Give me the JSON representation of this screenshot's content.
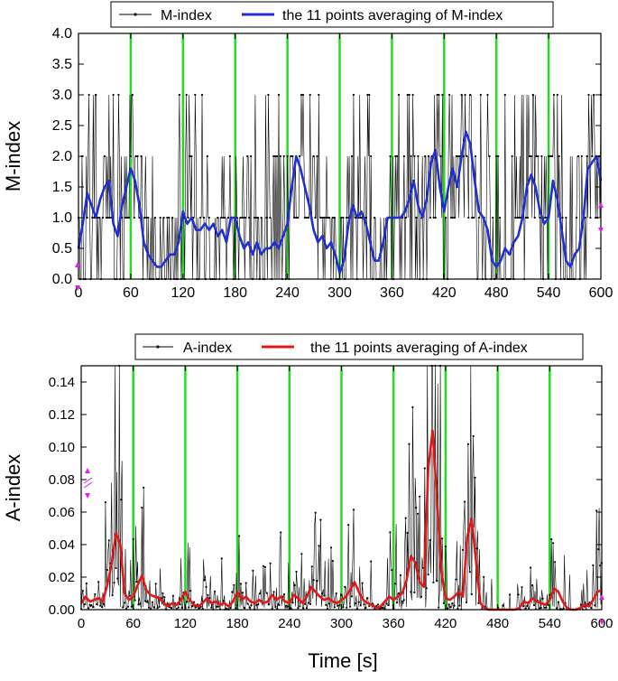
{
  "chart_data": [
    {
      "type": "line",
      "id": "m",
      "ylabel": "M-index",
      "xlim": [
        0,
        600
      ],
      "ylim": [
        0,
        4
      ],
      "xticks": [
        0,
        60,
        120,
        180,
        240,
        300,
        360,
        420,
        480,
        540,
        600
      ],
      "xtick_labels": [
        "0",
        "60",
        "120",
        "180",
        "240",
        "300",
        "360",
        "420",
        "480",
        "540",
        "600"
      ],
      "yticks": [
        0,
        0.5,
        1.0,
        1.5,
        2.0,
        2.5,
        3.0,
        3.5,
        4.0
      ],
      "ytick_labels": [
        "0.0",
        "0.5",
        "1.0",
        "1.5",
        "2.0",
        "2.5",
        "3.0",
        "3.5",
        "4.0"
      ],
      "vlines": [
        60,
        120,
        180,
        240,
        300,
        360,
        420,
        480,
        540
      ],
      "legend": [
        {
          "label": "M-index",
          "color": "#000000"
        },
        {
          "label": "the 11 points averaging of M-index",
          "color": "#1f2fd0"
        }
      ],
      "raw_series_color": "#000000",
      "avg_series_color": "#1f2fd0",
      "avg_series": [
        {
          "x": 0,
          "y": 0.5
        },
        {
          "x": 5,
          "y": 0.9
        },
        {
          "x": 10,
          "y": 1.4
        },
        {
          "x": 15,
          "y": 1.2
        },
        {
          "x": 20,
          "y": 1.0
        },
        {
          "x": 25,
          "y": 1.3
        },
        {
          "x": 30,
          "y": 1.5
        },
        {
          "x": 35,
          "y": 1.6
        },
        {
          "x": 40,
          "y": 0.9
        },
        {
          "x": 45,
          "y": 0.7
        },
        {
          "x": 50,
          "y": 1.2
        },
        {
          "x": 55,
          "y": 1.5
        },
        {
          "x": 60,
          "y": 1.8
        },
        {
          "x": 65,
          "y": 1.6
        },
        {
          "x": 70,
          "y": 1.2
        },
        {
          "x": 75,
          "y": 0.6
        },
        {
          "x": 80,
          "y": 0.4
        },
        {
          "x": 85,
          "y": 0.3
        },
        {
          "x": 90,
          "y": 0.2
        },
        {
          "x": 95,
          "y": 0.2
        },
        {
          "x": 100,
          "y": 0.3
        },
        {
          "x": 105,
          "y": 0.4
        },
        {
          "x": 110,
          "y": 0.4
        },
        {
          "x": 115,
          "y": 0.6
        },
        {
          "x": 120,
          "y": 1.1
        },
        {
          "x": 125,
          "y": 0.9
        },
        {
          "x": 130,
          "y": 1.0
        },
        {
          "x": 135,
          "y": 0.8
        },
        {
          "x": 140,
          "y": 0.8
        },
        {
          "x": 145,
          "y": 0.9
        },
        {
          "x": 150,
          "y": 0.8
        },
        {
          "x": 155,
          "y": 0.9
        },
        {
          "x": 160,
          "y": 0.7
        },
        {
          "x": 165,
          "y": 0.8
        },
        {
          "x": 170,
          "y": 0.6
        },
        {
          "x": 175,
          "y": 1.0
        },
        {
          "x": 180,
          "y": 1.0
        },
        {
          "x": 185,
          "y": 0.7
        },
        {
          "x": 190,
          "y": 0.5
        },
        {
          "x": 195,
          "y": 0.6
        },
        {
          "x": 200,
          "y": 0.4
        },
        {
          "x": 205,
          "y": 0.6
        },
        {
          "x": 210,
          "y": 0.4
        },
        {
          "x": 215,
          "y": 0.5
        },
        {
          "x": 220,
          "y": 0.5
        },
        {
          "x": 225,
          "y": 0.6
        },
        {
          "x": 230,
          "y": 0.5
        },
        {
          "x": 235,
          "y": 0.7
        },
        {
          "x": 240,
          "y": 0.9
        },
        {
          "x": 245,
          "y": 1.5
        },
        {
          "x": 250,
          "y": 2.0
        },
        {
          "x": 255,
          "y": 1.8
        },
        {
          "x": 260,
          "y": 1.5
        },
        {
          "x": 265,
          "y": 1.2
        },
        {
          "x": 270,
          "y": 0.8
        },
        {
          "x": 275,
          "y": 0.6
        },
        {
          "x": 280,
          "y": 0.7
        },
        {
          "x": 285,
          "y": 0.5
        },
        {
          "x": 290,
          "y": 0.6
        },
        {
          "x": 295,
          "y": 0.4
        },
        {
          "x": 300,
          "y": 0.1
        },
        {
          "x": 305,
          "y": 0.3
        },
        {
          "x": 310,
          "y": 0.9
        },
        {
          "x": 315,
          "y": 1.2
        },
        {
          "x": 320,
          "y": 1.0
        },
        {
          "x": 325,
          "y": 1.1
        },
        {
          "x": 330,
          "y": 0.9
        },
        {
          "x": 335,
          "y": 0.6
        },
        {
          "x": 340,
          "y": 0.3
        },
        {
          "x": 345,
          "y": 0.3
        },
        {
          "x": 350,
          "y": 0.6
        },
        {
          "x": 355,
          "y": 1.0
        },
        {
          "x": 360,
          "y": 1.0
        },
        {
          "x": 365,
          "y": 1.0
        },
        {
          "x": 370,
          "y": 1.0
        },
        {
          "x": 375,
          "y": 1.1
        },
        {
          "x": 380,
          "y": 1.3
        },
        {
          "x": 385,
          "y": 1.6
        },
        {
          "x": 390,
          "y": 1.2
        },
        {
          "x": 395,
          "y": 1.0
        },
        {
          "x": 400,
          "y": 1.3
        },
        {
          "x": 405,
          "y": 1.9
        },
        {
          "x": 410,
          "y": 2.1
        },
        {
          "x": 415,
          "y": 1.5
        },
        {
          "x": 420,
          "y": 1.1
        },
        {
          "x": 425,
          "y": 1.5
        },
        {
          "x": 430,
          "y": 1.8
        },
        {
          "x": 435,
          "y": 1.5
        },
        {
          "x": 440,
          "y": 2.0
        },
        {
          "x": 445,
          "y": 2.4
        },
        {
          "x": 450,
          "y": 2.2
        },
        {
          "x": 455,
          "y": 1.6
        },
        {
          "x": 460,
          "y": 1.1
        },
        {
          "x": 465,
          "y": 1.0
        },
        {
          "x": 470,
          "y": 0.8
        },
        {
          "x": 475,
          "y": 0.3
        },
        {
          "x": 480,
          "y": 0.2
        },
        {
          "x": 485,
          "y": 0.3
        },
        {
          "x": 490,
          "y": 0.5
        },
        {
          "x": 495,
          "y": 0.4
        },
        {
          "x": 500,
          "y": 0.6
        },
        {
          "x": 505,
          "y": 0.7
        },
        {
          "x": 510,
          "y": 1.0
        },
        {
          "x": 515,
          "y": 1.5
        },
        {
          "x": 520,
          "y": 1.7
        },
        {
          "x": 525,
          "y": 1.5
        },
        {
          "x": 530,
          "y": 1.1
        },
        {
          "x": 535,
          "y": 0.9
        },
        {
          "x": 540,
          "y": 1.0
        },
        {
          "x": 545,
          "y": 1.6
        },
        {
          "x": 550,
          "y": 1.3
        },
        {
          "x": 555,
          "y": 0.8
        },
        {
          "x": 560,
          "y": 0.3
        },
        {
          "x": 565,
          "y": 0.2
        },
        {
          "x": 570,
          "y": 0.4
        },
        {
          "x": 575,
          "y": 0.5
        },
        {
          "x": 580,
          "y": 1.0
        },
        {
          "x": 585,
          "y": 1.8
        },
        {
          "x": 590,
          "y": 1.9
        },
        {
          "x": 595,
          "y": 2.0
        },
        {
          "x": 600,
          "y": 1.6
        }
      ]
    },
    {
      "type": "line",
      "id": "a",
      "ylabel": "A-index",
      "xlabel": "Time [s]",
      "xlim": [
        0,
        600
      ],
      "ylim": [
        0,
        0.15
      ],
      "xticks": [
        0,
        60,
        120,
        180,
        240,
        300,
        360,
        420,
        480,
        540,
        600
      ],
      "xtick_labels": [
        "0",
        "60",
        "120",
        "180",
        "240",
        "300",
        "360",
        "420",
        "480",
        "540",
        "600"
      ],
      "yticks": [
        0,
        0.02,
        0.04,
        0.06,
        0.08,
        0.1,
        0.12,
        0.14
      ],
      "ytick_labels": [
        "0.00",
        "0.02",
        "0.04",
        "0.06",
        "0.08",
        "0.10",
        "0.12",
        "0.14"
      ],
      "vlines": [
        60,
        120,
        180,
        240,
        300,
        360,
        420,
        480,
        540
      ],
      "legend": [
        {
          "label": "A-index",
          "color": "#000000"
        },
        {
          "label": "the 11 points averaging of A-index",
          "color": "#e01818"
        }
      ],
      "raw_series_color": "#000000",
      "avg_series_color": "#e01818",
      "avg_series": [
        {
          "x": 0,
          "y": 0.004
        },
        {
          "x": 5,
          "y": 0.008
        },
        {
          "x": 10,
          "y": 0.005
        },
        {
          "x": 15,
          "y": 0.006
        },
        {
          "x": 20,
          "y": 0.007
        },
        {
          "x": 25,
          "y": 0.005
        },
        {
          "x": 30,
          "y": 0.015
        },
        {
          "x": 35,
          "y": 0.028
        },
        {
          "x": 40,
          "y": 0.047
        },
        {
          "x": 45,
          "y": 0.04
        },
        {
          "x": 50,
          "y": 0.01
        },
        {
          "x": 55,
          "y": 0.006
        },
        {
          "x": 60,
          "y": 0.008
        },
        {
          "x": 65,
          "y": 0.015
        },
        {
          "x": 70,
          "y": 0.021
        },
        {
          "x": 75,
          "y": 0.012
        },
        {
          "x": 80,
          "y": 0.009
        },
        {
          "x": 85,
          "y": 0.008
        },
        {
          "x": 90,
          "y": 0.007
        },
        {
          "x": 95,
          "y": 0.004
        },
        {
          "x": 100,
          "y": 0.002
        },
        {
          "x": 105,
          "y": 0.004
        },
        {
          "x": 110,
          "y": 0.003
        },
        {
          "x": 115,
          "y": 0.006
        },
        {
          "x": 120,
          "y": 0.011
        },
        {
          "x": 125,
          "y": 0.006
        },
        {
          "x": 130,
          "y": 0.003
        },
        {
          "x": 135,
          "y": 0.002
        },
        {
          "x": 140,
          "y": 0.004
        },
        {
          "x": 145,
          "y": 0.007
        },
        {
          "x": 150,
          "y": 0.004
        },
        {
          "x": 155,
          "y": 0.005
        },
        {
          "x": 160,
          "y": 0.003
        },
        {
          "x": 165,
          "y": 0.004
        },
        {
          "x": 170,
          "y": 0.002
        },
        {
          "x": 175,
          "y": 0.005
        },
        {
          "x": 180,
          "y": 0.011
        },
        {
          "x": 185,
          "y": 0.006
        },
        {
          "x": 190,
          "y": 0.008
        },
        {
          "x": 195,
          "y": 0.005
        },
        {
          "x": 200,
          "y": 0.004
        },
        {
          "x": 205,
          "y": 0.006
        },
        {
          "x": 210,
          "y": 0.004
        },
        {
          "x": 215,
          "y": 0.005
        },
        {
          "x": 220,
          "y": 0.009
        },
        {
          "x": 225,
          "y": 0.006
        },
        {
          "x": 230,
          "y": 0.008
        },
        {
          "x": 235,
          "y": 0.005
        },
        {
          "x": 240,
          "y": 0.004
        },
        {
          "x": 245,
          "y": 0.009
        },
        {
          "x": 250,
          "y": 0.007
        },
        {
          "x": 255,
          "y": 0.004
        },
        {
          "x": 260,
          "y": 0.008
        },
        {
          "x": 265,
          "y": 0.014
        },
        {
          "x": 270,
          "y": 0.011
        },
        {
          "x": 275,
          "y": 0.008
        },
        {
          "x": 280,
          "y": 0.006
        },
        {
          "x": 285,
          "y": 0.007
        },
        {
          "x": 290,
          "y": 0.005
        },
        {
          "x": 295,
          "y": 0.004
        },
        {
          "x": 300,
          "y": 0.006
        },
        {
          "x": 305,
          "y": 0.008
        },
        {
          "x": 310,
          "y": 0.012
        },
        {
          "x": 315,
          "y": 0.017
        },
        {
          "x": 320,
          "y": 0.011
        },
        {
          "x": 325,
          "y": 0.006
        },
        {
          "x": 330,
          "y": 0.004
        },
        {
          "x": 335,
          "y": 0.003
        },
        {
          "x": 340,
          "y": 0.001
        },
        {
          "x": 345,
          "y": 0.002
        },
        {
          "x": 350,
          "y": 0.005
        },
        {
          "x": 355,
          "y": 0.008
        },
        {
          "x": 360,
          "y": 0.006
        },
        {
          "x": 365,
          "y": 0.008
        },
        {
          "x": 370,
          "y": 0.01
        },
        {
          "x": 375,
          "y": 0.018
        },
        {
          "x": 380,
          "y": 0.033
        },
        {
          "x": 385,
          "y": 0.029
        },
        {
          "x": 390,
          "y": 0.017
        },
        {
          "x": 395,
          "y": 0.014
        },
        {
          "x": 400,
          "y": 0.087
        },
        {
          "x": 405,
          "y": 0.11
        },
        {
          "x": 410,
          "y": 0.069
        },
        {
          "x": 415,
          "y": 0.024
        },
        {
          "x": 420,
          "y": 0.007
        },
        {
          "x": 425,
          "y": 0.006
        },
        {
          "x": 430,
          "y": 0.008
        },
        {
          "x": 435,
          "y": 0.011
        },
        {
          "x": 440,
          "y": 0.008
        },
        {
          "x": 445,
          "y": 0.045
        },
        {
          "x": 450,
          "y": 0.056
        },
        {
          "x": 455,
          "y": 0.03
        },
        {
          "x": 460,
          "y": 0.004
        },
        {
          "x": 465,
          "y": 0.001
        },
        {
          "x": 470,
          "y": 0.0
        },
        {
          "x": 475,
          "y": 0.0
        },
        {
          "x": 480,
          "y": 0.0
        },
        {
          "x": 485,
          "y": 0.0
        },
        {
          "x": 490,
          "y": 0.0
        },
        {
          "x": 495,
          "y": 0.0
        },
        {
          "x": 500,
          "y": 0.0
        },
        {
          "x": 505,
          "y": 0.001
        },
        {
          "x": 510,
          "y": 0.005
        },
        {
          "x": 515,
          "y": 0.004
        },
        {
          "x": 520,
          "y": 0.007
        },
        {
          "x": 525,
          "y": 0.005
        },
        {
          "x": 530,
          "y": 0.004
        },
        {
          "x": 535,
          "y": 0.003
        },
        {
          "x": 540,
          "y": 0.006
        },
        {
          "x": 545,
          "y": 0.013
        },
        {
          "x": 550,
          "y": 0.011
        },
        {
          "x": 555,
          "y": 0.005
        },
        {
          "x": 560,
          "y": 0.001
        },
        {
          "x": 565,
          "y": 0.0
        },
        {
          "x": 570,
          "y": 0.0
        },
        {
          "x": 575,
          "y": 0.001
        },
        {
          "x": 580,
          "y": 0.003
        },
        {
          "x": 585,
          "y": 0.002
        },
        {
          "x": 590,
          "y": 0.006
        },
        {
          "x": 595,
          "y": 0.011
        },
        {
          "x": 600,
          "y": 0.012
        }
      ]
    }
  ],
  "style": {
    "vline_color": "#22dd22",
    "marker_color": "#e020e0"
  }
}
